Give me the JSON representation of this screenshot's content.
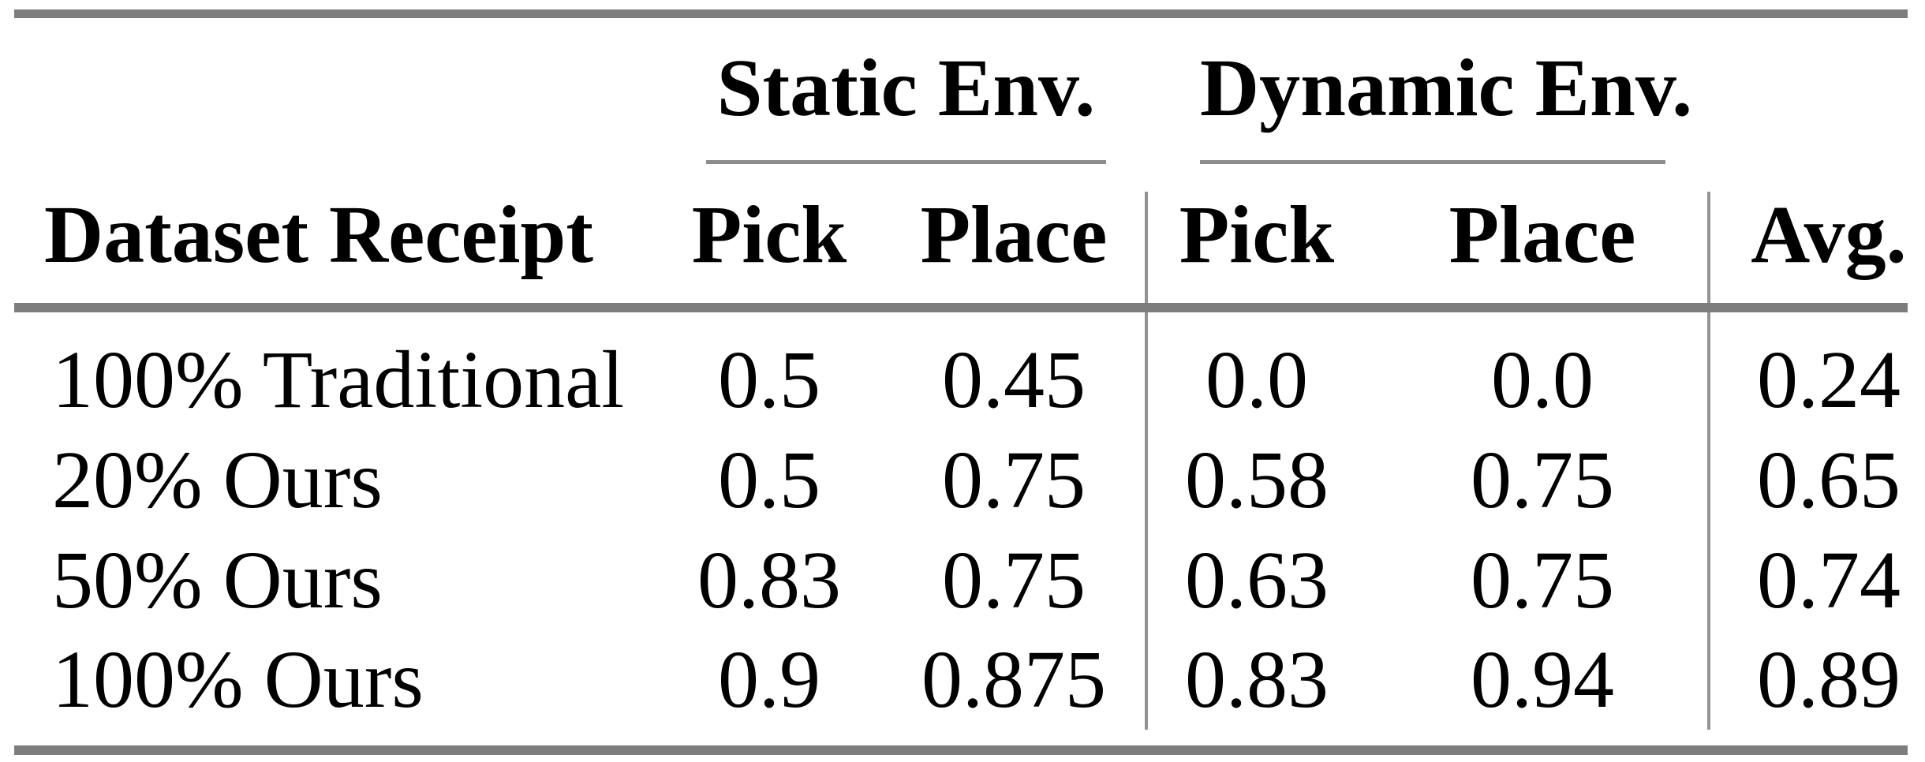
{
  "table": {
    "groups": {
      "static": "Static Env.",
      "dynamic": "Dynamic Env."
    },
    "columns": {
      "label": "Dataset Receipt",
      "static_pick": "Pick",
      "static_place": "Place",
      "dynamic_pick": "Pick",
      "dynamic_place": "Place",
      "avg": "Avg."
    },
    "rows": [
      {
        "label": "100% Traditional",
        "s_pick": "0.5",
        "s_place": "0.45",
        "d_pick": "0.0",
        "d_place": "0.0",
        "avg": "0.24"
      },
      {
        "label": "20% Ours",
        "s_pick": "0.5",
        "s_place": "0.75",
        "d_pick": "0.58",
        "d_place": "0.75",
        "avg": "0.65"
      },
      {
        "label": "50% Ours",
        "s_pick": "0.83",
        "s_place": "0.75",
        "d_pick": "0.63",
        "d_place": "0.75",
        "avg": "0.74"
      },
      {
        "label": "100% Ours",
        "s_pick": "0.9",
        "s_place": "0.875",
        "d_pick": "0.83",
        "d_place": "0.94",
        "avg": "0.89"
      }
    ]
  },
  "chart_data": {
    "type": "table",
    "title": "",
    "column_groups": [
      "",
      "Static Env.",
      "Static Env.",
      "Dynamic Env.",
      "Dynamic Env.",
      ""
    ],
    "columns": [
      "Dataset Receipt",
      "Pick",
      "Place",
      "Pick",
      "Place",
      "Avg."
    ],
    "rows": [
      [
        "100% Traditional",
        0.5,
        0.45,
        0.0,
        0.0,
        0.24
      ],
      [
        "20% Ours",
        0.5,
        0.75,
        0.58,
        0.75,
        0.65
      ],
      [
        "50% Ours",
        0.83,
        0.75,
        0.63,
        0.75,
        0.74
      ],
      [
        "100% Ours",
        0.9,
        0.875,
        0.83,
        0.94,
        0.89
      ]
    ]
  },
  "colors": {
    "background": "#ffffff",
    "text": "#000000",
    "thick_rule": "#7d7d7d",
    "cmidrule": "#8c8c8c",
    "divider": "#929292"
  }
}
